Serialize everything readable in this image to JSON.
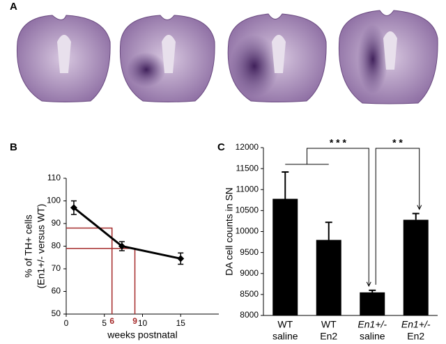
{
  "panel_labels": [
    "A",
    "B",
    "C"
  ],
  "chart_data": [
    {
      "type": "line",
      "x": [
        1,
        7.3,
        15
      ],
      "values": [
        97,
        80,
        74.5
      ],
      "errors": [
        3,
        2,
        2.5
      ],
      "color": "#000000",
      "xlim": [
        0,
        20
      ],
      "xticks": [
        0,
        5,
        10,
        15
      ],
      "ylim": [
        50,
        110
      ],
      "yticks": [
        50,
        60,
        70,
        80,
        90,
        100,
        110
      ],
      "x_label": "weeks postnatal",
      "y_label": [
        "% of TH+ cells",
        "(En1+/- versus WT)"
      ],
      "guides": [
        {
          "x": 6,
          "y": 88
        },
        {
          "x": 9,
          "y": 79
        }
      ],
      "guide_color": "#a52a2a"
    },
    {
      "type": "bar",
      "categories": [
        [
          "WT",
          "saline"
        ],
        [
          "WT",
          "En2"
        ],
        [
          "En1+/-",
          "saline"
        ],
        [
          "En1+/-",
          "En2"
        ]
      ],
      "italic_first_line": [
        false,
        false,
        true,
        true
      ],
      "values": [
        10780,
        9800,
        8550,
        10280
      ],
      "errors": [
        640,
        420,
        50,
        150
      ],
      "color": "#000000",
      "ylim": [
        8000,
        12000
      ],
      "yticks": [
        8000,
        8500,
        9000,
        9500,
        10000,
        10500,
        11000,
        11500,
        12000
      ],
      "y_label": "DA cell counts in SN",
      "significance": [
        {
          "from": [
            0,
            1
          ],
          "to": 2,
          "label": "* * *"
        },
        {
          "from": [
            2
          ],
          "to": 3,
          "label": "* *"
        }
      ]
    }
  ]
}
